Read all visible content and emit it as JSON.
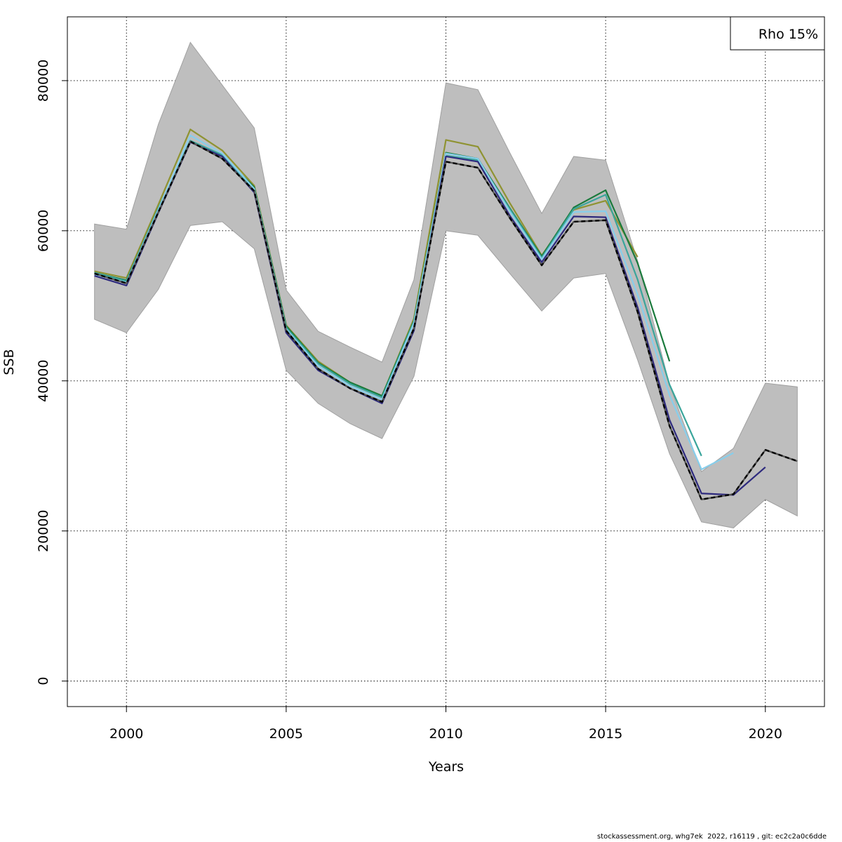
{
  "chart_data": {
    "type": "line",
    "title": "",
    "xlabel": "Years",
    "ylabel": "SSB",
    "xlim": [
      1998.15,
      2021.85
    ],
    "ylim": [
      -3400,
      88500
    ],
    "x_ticks": [
      2000,
      2005,
      2010,
      2015,
      2020
    ],
    "y_ticks": [
      0,
      20000,
      40000,
      60000,
      80000
    ],
    "grid": true,
    "legend": {
      "position": "top-right",
      "text": "Rho 15%"
    },
    "confidence_band": {
      "color": "#bebebe",
      "years": [
        1999,
        2000,
        2001,
        2002,
        2003,
        2004,
        2005,
        2006,
        2007,
        2008,
        2009,
        2010,
        2011,
        2012,
        2013,
        2014,
        2015,
        2016,
        2017,
        2018,
        2019,
        2020,
        2021
      ],
      "lower": [
        48200,
        46400,
        52200,
        60700,
        61200,
        57600,
        41400,
        37000,
        34300,
        32300,
        40600,
        60000,
        59400,
        54300,
        49300,
        53700,
        54300,
        42800,
        30300,
        21200,
        20400,
        24200,
        22000
      ],
      "upper": [
        60900,
        60200,
        74200,
        85100,
        79400,
        73700,
        52100,
        46600,
        44500,
        42500,
        53500,
        79700,
        78800,
        70400,
        62300,
        69900,
        69400,
        56000,
        39500,
        27900,
        31000,
        39700,
        39200
      ]
    },
    "series": [
      {
        "color": "#000000",
        "dashed": true,
        "x": [
          1999,
          2000,
          2001,
          2002,
          2003,
          2004,
          2005,
          2006,
          2007,
          2008,
          2009,
          2010,
          2011,
          2012,
          2013,
          2014,
          2015,
          2016,
          2017,
          2018,
          2019,
          2020,
          2021
        ],
        "values": [
          54300,
          53000,
          62500,
          71900,
          69600,
          65300,
          46700,
          41600,
          39000,
          37200,
          47000,
          69200,
          68400,
          61700,
          55400,
          61200,
          61400,
          49200,
          34000,
          24200,
          24900,
          30800,
          29300
        ]
      },
      {
        "color": "#2e2a7e",
        "dashed": false,
        "x": [
          1999,
          2000,
          2001,
          2002,
          2003,
          2004,
          2005,
          2006,
          2007,
          2008,
          2009,
          2010,
          2011,
          2012,
          2013,
          2014,
          2015,
          2016,
          2017,
          2018,
          2019,
          2020
        ],
        "values": [
          54000,
          52700,
          62400,
          71800,
          69900,
          65100,
          46400,
          41400,
          39000,
          37000,
          46700,
          69900,
          69200,
          62000,
          55800,
          61900,
          61800,
          49800,
          34800,
          25000,
          24800,
          28500
        ]
      },
      {
        "color": "#87ceeb",
        "dashed": false,
        "x": [
          1999,
          2000,
          2001,
          2002,
          2003,
          2004,
          2005,
          2006,
          2007,
          2008,
          2009,
          2010,
          2011,
          2012,
          2013,
          2014,
          2015,
          2016,
          2017,
          2018,
          2019
        ],
        "values": [
          54200,
          53100,
          62800,
          72700,
          70300,
          65600,
          46900,
          42000,
          39300,
          37500,
          47700,
          70300,
          69600,
          62600,
          56200,
          62500,
          62600,
          51500,
          38100,
          28200,
          30400
        ]
      },
      {
        "color": "#3aa59b",
        "dashed": false,
        "x": [
          1999,
          2000,
          2001,
          2002,
          2003,
          2004,
          2005,
          2006,
          2007,
          2008,
          2009,
          2010,
          2011,
          2012,
          2013,
          2014,
          2015,
          2016,
          2017,
          2018
        ],
        "values": [
          54400,
          53300,
          63000,
          72000,
          70100,
          65500,
          47100,
          42300,
          39600,
          37800,
          47900,
          70000,
          69400,
          62900,
          56400,
          62900,
          64800,
          53500,
          39500,
          30000
        ]
      },
      {
        "color": "#1a7a3c",
        "dashed": false,
        "x": [
          1999,
          2000,
          2001,
          2002,
          2003,
          2004,
          2005,
          2006,
          2007,
          2008,
          2009,
          2010,
          2011,
          2012,
          2013,
          2014,
          2015,
          2016,
          2017
        ],
        "values": [
          54400,
          53400,
          62800,
          71900,
          70000,
          65800,
          47300,
          42400,
          39800,
          38000,
          48000,
          70400,
          69600,
          63000,
          56600,
          63100,
          65400,
          55700,
          42600
        ]
      },
      {
        "color": "#8f9332",
        "dashed": false,
        "x": [
          1999,
          2000,
          2001,
          2002,
          2003,
          2004,
          2005,
          2006,
          2007,
          2008,
          2009,
          2010,
          2011,
          2012,
          2013,
          2014,
          2015,
          2016
        ],
        "values": [
          54600,
          53700,
          63500,
          73500,
          70700,
          66000,
          47400,
          42600,
          39800,
          38000,
          48300,
          72100,
          71200,
          63700,
          56700,
          62800,
          64000,
          56500
        ]
      }
    ]
  },
  "footer_text": "stockassessment.org, whg7ek  2022, r16119 , git: ec2c2a0c6dde"
}
